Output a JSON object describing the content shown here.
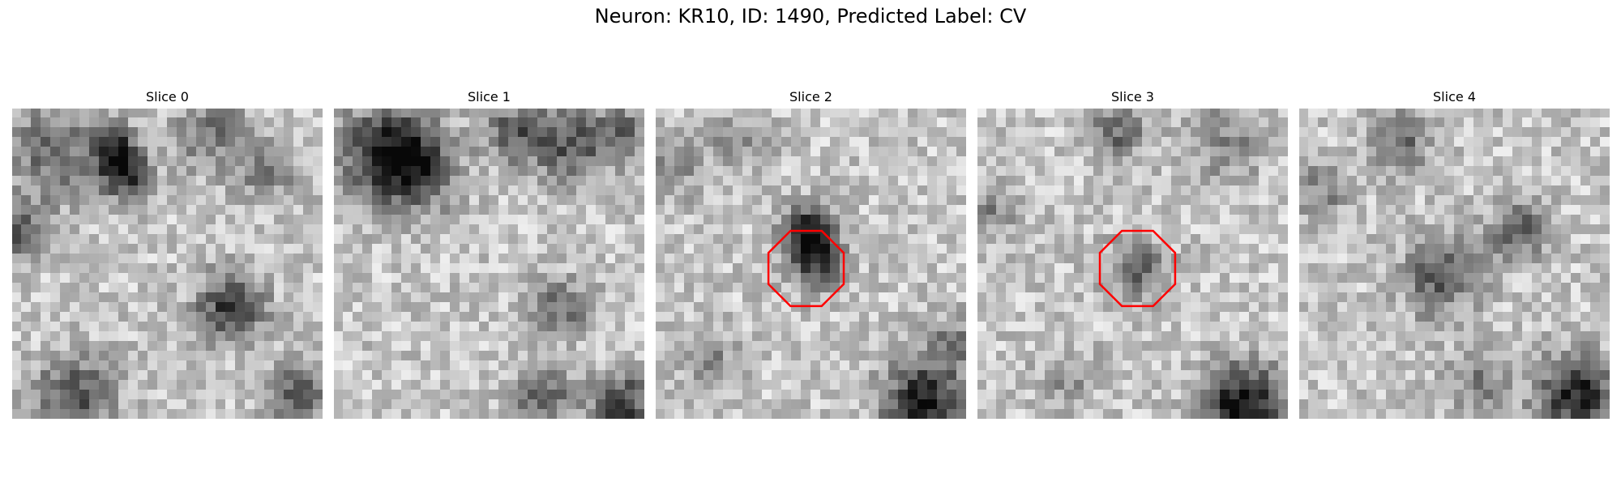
{
  "figure": {
    "title": "Neuron: KR10, ID: 1490, Predicted Label: CV"
  },
  "slices": [
    {
      "label": "Slice 0",
      "has_marker": false
    },
    {
      "label": "Slice 1",
      "has_marker": false
    },
    {
      "label": "Slice 2",
      "has_marker": true
    },
    {
      "label": "Slice 3",
      "has_marker": true
    },
    {
      "label": "Slice 4",
      "has_marker": false
    }
  ],
  "marker": {
    "shape": "octagon",
    "color": "#ff0000"
  },
  "colormap": "gray"
}
